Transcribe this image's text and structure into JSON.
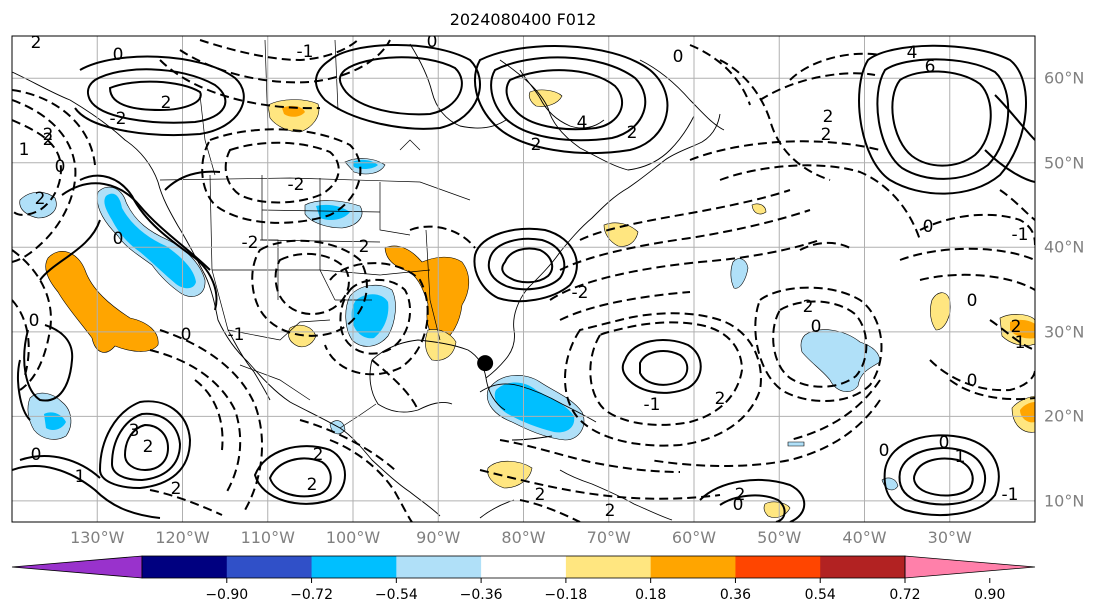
{
  "title": "2024080400 F012",
  "marker_color": "#000000",
  "map": {
    "lon_range": [
      -140,
      -20
    ],
    "lat_range": [
      7.5,
      65
    ],
    "lon_ticks": [
      "130°W",
      "120°W",
      "110°W",
      "100°W",
      "90°W",
      "80°W",
      "70°W",
      "60°W",
      "50°W",
      "40°W",
      "30°W"
    ],
    "lat_ticks": [
      "60°N",
      "50°N",
      "40°N",
      "30°N",
      "20°N",
      "10°N"
    ],
    "storm_marker": {
      "lon": -84.5,
      "lat": 26.3
    }
  },
  "contour_labels": [
    "-1",
    "0",
    "2",
    "0",
    "0",
    "4",
    "6",
    "2",
    "-2",
    "2",
    "1",
    "2",
    "0",
    "4",
    "2",
    "2",
    "2",
    "-2",
    "2",
    "0",
    "-1",
    "2",
    "0",
    "-2",
    "0",
    "2",
    "0",
    "0",
    "1",
    "0",
    "-1",
    "2",
    "-2",
    "0",
    "-1",
    "3",
    "2",
    "2",
    "2",
    "2",
    "0",
    "0",
    "0",
    "1",
    "2",
    "2",
    "2",
    "2",
    "0",
    "1",
    "-1",
    "2"
  ],
  "colorbar": {
    "colors": [
      "#9932cc",
      "#000080",
      "#3050c8",
      "#00bfff",
      "#b0e0f8",
      "#ffffff",
      "#ffe680",
      "#ffa500",
      "#ff4500",
      "#b22222",
      "#ff80aa"
    ],
    "tick_labels": [
      "−0.90",
      "−0.72",
      "−0.54",
      "−0.36",
      "−0.18",
      "0.18",
      "0.36",
      "0.54",
      "0.72",
      "0.90"
    ]
  }
}
